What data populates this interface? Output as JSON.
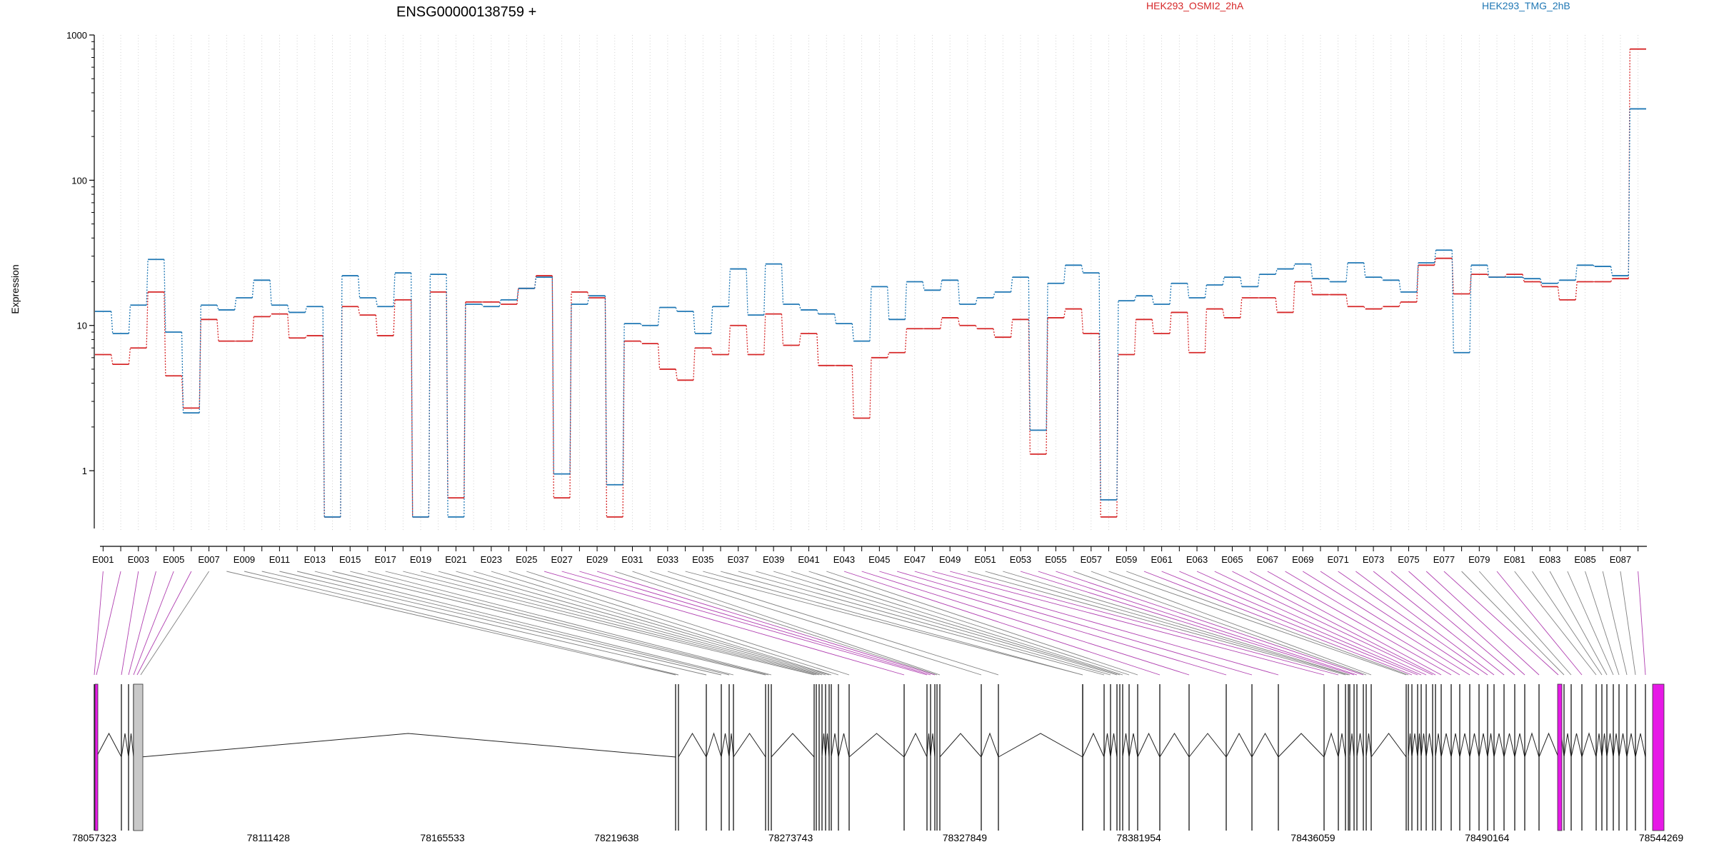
{
  "chart_data": {
    "type": "line",
    "title": "ENSG00000138759 +",
    "ylabel": "Expression",
    "xlabel": "",
    "y_scale": "log",
    "ylim": [
      0.4,
      1000
    ],
    "y_ticks": [
      1,
      10,
      100,
      1000
    ],
    "y_tick_labels": [
      "1",
      "10",
      "100",
      "1000"
    ],
    "grid": "vertical dotted lines at each exon",
    "legend_placement": "top",
    "exons": [
      "E001",
      "E002",
      "E003",
      "E004",
      "E005",
      "E006",
      "E007",
      "E008",
      "E009",
      "E010",
      "E011",
      "E012",
      "E013",
      "E014",
      "E015",
      "E016",
      "E017",
      "E018",
      "E019",
      "E020",
      "E021",
      "E022",
      "E023",
      "E024",
      "E025",
      "E026",
      "E027",
      "E028",
      "E029",
      "E030",
      "E031",
      "E032",
      "E033",
      "E034",
      "E035",
      "E036",
      "E037",
      "E038",
      "E039",
      "E040",
      "E041",
      "E042",
      "E043",
      "E044",
      "E045",
      "E046",
      "E047",
      "E048",
      "E049",
      "E050",
      "E051",
      "E052",
      "E053",
      "E054",
      "E055",
      "E056",
      "E057",
      "E058",
      "E059",
      "E060",
      "E061",
      "E062",
      "E063",
      "E064",
      "E065",
      "E066",
      "E067",
      "E068",
      "E069",
      "E070",
      "E071",
      "E072",
      "E073",
      "E074",
      "E075",
      "E076",
      "E077",
      "E078",
      "E079",
      "E080",
      "E081",
      "E082",
      "E083",
      "E084",
      "E085",
      "E086",
      "E087",
      "E088"
    ],
    "x_tick_labels": [
      "E001",
      "E003",
      "E005",
      "E007",
      "E009",
      "E011",
      "E013",
      "E015",
      "E017",
      "E019",
      "E021",
      "E023",
      "E025",
      "E027",
      "E029",
      "E031",
      "E033",
      "E035",
      "E037",
      "E039",
      "E041",
      "E043",
      "E045",
      "E047",
      "E049",
      "E051",
      "E053",
      "E055",
      "E057",
      "E059",
      "E061",
      "E063",
      "E065",
      "E067",
      "E069",
      "E071",
      "E073",
      "E075",
      "E077",
      "E079",
      "E081",
      "E083",
      "E085",
      "E087"
    ],
    "series": [
      {
        "name": "HEK293_OSMI2_2hA",
        "color": "#d62728",
        "values": [
          6.3,
          5.4,
          7,
          17,
          4.5,
          2.7,
          11,
          7.8,
          7.8,
          11.5,
          12,
          8.2,
          8.5,
          0.48,
          13.5,
          11.8,
          8.5,
          15,
          0.48,
          17,
          0.65,
          14.5,
          14.5,
          14,
          18,
          22,
          0.65,
          17,
          15.5,
          0.48,
          7.8,
          7.5,
          5,
          4.2,
          7,
          6.3,
          10,
          6.3,
          12,
          7.3,
          8.8,
          5.3,
          5.3,
          2.3,
          6,
          6.5,
          9.5,
          9.5,
          11.3,
          10,
          9.5,
          8.3,
          11,
          1.3,
          11.3,
          13,
          8.8,
          0.48,
          6.3,
          11,
          8.8,
          12.3,
          6.5,
          13,
          11.3,
          15.5,
          15.5,
          12.3,
          20,
          16.3,
          16.3,
          13.5,
          13,
          13.5,
          14.5,
          26,
          29,
          16.5,
          22.5,
          21.5,
          22.5,
          20,
          18.5,
          15,
          20,
          20,
          21,
          800
        ]
      },
      {
        "name": "HEK293_TMG_2hB",
        "color": "#1f77b4",
        "values": [
          12.5,
          8.8,
          13.8,
          28.5,
          9,
          2.5,
          13.8,
          12.8,
          15.5,
          20.5,
          13.8,
          12.3,
          13.5,
          0.48,
          22,
          15.5,
          13.5,
          23,
          0.48,
          22.5,
          0.48,
          14,
          13.5,
          15,
          18,
          21.5,
          0.95,
          14,
          16,
          0.8,
          10.3,
          10,
          13.3,
          12.5,
          8.8,
          13.5,
          24.5,
          11.8,
          26.5,
          14,
          12.8,
          12,
          10.3,
          7.8,
          18.5,
          11,
          20,
          17.5,
          20.5,
          14,
          15.5,
          17,
          21.5,
          1.9,
          19.5,
          26,
          23,
          0.63,
          14.8,
          16,
          14,
          19.5,
          15.5,
          19,
          21.5,
          18.5,
          22.5,
          24.5,
          26.5,
          21,
          20,
          27,
          21.5,
          20.5,
          17,
          27,
          33,
          6.5,
          26,
          21.5,
          21.5,
          21,
          19.5,
          20.5,
          26,
          25.5,
          22,
          310
        ]
      }
    ],
    "genomic_axis": {
      "tick_labels": [
        "78057323",
        "78111428",
        "78165533",
        "78219638",
        "78273743",
        "78327849",
        "78381954",
        "78436059",
        "78490164",
        "78544269"
      ]
    }
  }
}
